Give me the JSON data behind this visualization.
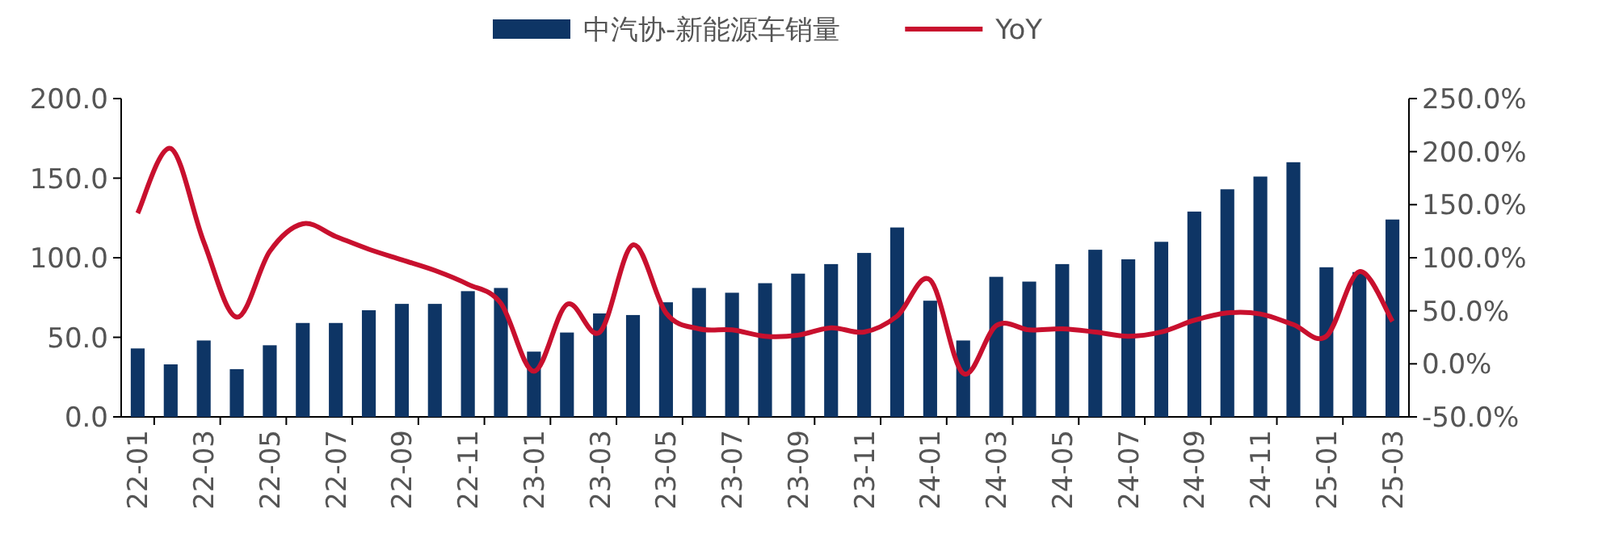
{
  "chart_data": {
    "type": "bar",
    "categories": [
      "22-01",
      null,
      "22-03",
      null,
      "22-05",
      null,
      "22-07",
      null,
      "22-09",
      null,
      "22-11",
      null,
      "23-01",
      null,
      "23-03",
      null,
      "23-05",
      null,
      "23-07",
      null,
      "23-09",
      null,
      "23-11",
      null,
      "24-01",
      null,
      "24-03",
      null,
      "24-05",
      null,
      "24-07",
      null,
      "24-09",
      null,
      "24-11",
      null,
      "25-01",
      null,
      "25-03"
    ],
    "series": [
      {
        "name": "中汽协-新能源车销量",
        "color": "#0e3565",
        "values": [
          43,
          33,
          48,
          30,
          45,
          59,
          59,
          67,
          71,
          71,
          79,
          81,
          41,
          53,
          65,
          64,
          72,
          81,
          78,
          84,
          90,
          96,
          103,
          119,
          73,
          48,
          88,
          85,
          96,
          105,
          99,
          110,
          129,
          143,
          151,
          160,
          94,
          91,
          124
        ]
      },
      {
        "name": "YoY",
        "type": "line",
        "axis": "y2",
        "color": "#c8102e",
        "values": [
          142,
          203,
          115,
          44,
          106,
          132,
          120,
          108,
          98,
          88,
          75,
          57,
          -7,
          56,
          30,
          112,
          48,
          33,
          32,
          26,
          27,
          34,
          30,
          45,
          79,
          -9,
          36,
          32,
          33,
          30,
          26,
          30,
          41,
          48,
          47,
          37,
          26,
          87,
          40
        ]
      }
    ],
    "ylim": [
      0,
      200
    ],
    "yticks": [
      {
        "value": 0,
        "label": "0.0"
      },
      {
        "value": 50,
        "label": "50.0"
      },
      {
        "value": 100,
        "label": "100.0"
      },
      {
        "value": 150,
        "label": "150.0"
      },
      {
        "value": 200,
        "label": "200.0"
      }
    ],
    "y2lim": [
      -50,
      250
    ],
    "y2ticks": [
      {
        "value": -50,
        "label": "-50.0%"
      },
      {
        "value": 0,
        "label": "0.0%"
      },
      {
        "value": 50,
        "label": "50.0%"
      },
      {
        "value": 100,
        "label": "100.0%"
      },
      {
        "value": 150,
        "label": "150.0%"
      },
      {
        "value": 200,
        "label": "200.0%"
      },
      {
        "value": 250,
        "label": "250.0%"
      }
    ],
    "legend": "top",
    "grid": false
  }
}
